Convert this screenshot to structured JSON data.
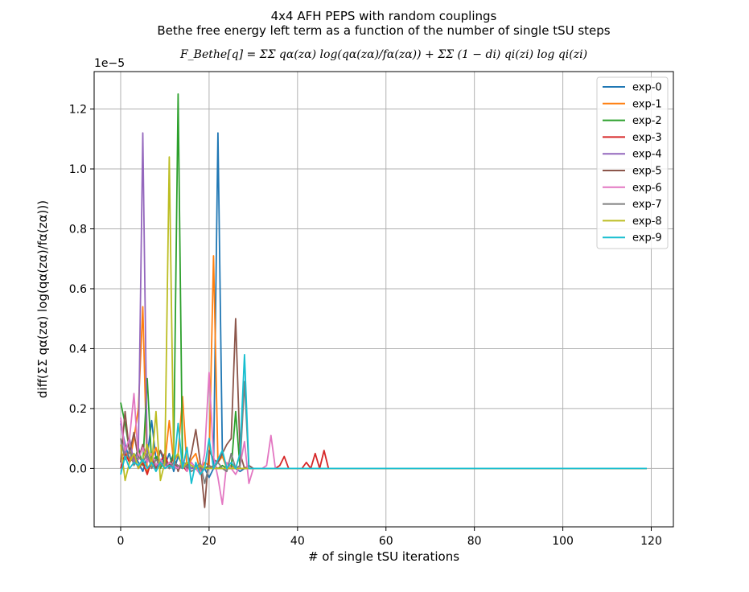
{
  "chart_data": {
    "type": "line",
    "title_lines": [
      "4x4 AFH PEPS with random couplings",
      "Bethe free energy left term as a function of the number of single tSU steps"
    ],
    "formula_title": "F_Bethe[q] = ΣΣ qα(zα) log(qα(zα)/fα(zα)) + ΣΣ (1 − di) qi(zi) log qi(zi)",
    "xlabel": "# of single tSU iterations",
    "ylabel": "diff(ΣΣ qα(zα) log(qα(zα)/fα(zα)))",
    "y_offset_label": "1e−5",
    "xlim": [
      -6,
      125
    ],
    "ylim": [
      -0.195,
      1.325
    ],
    "x_ticks": [
      "0",
      "20",
      "40",
      "60",
      "80",
      "100",
      "120"
    ],
    "y_ticks": [
      "0.0",
      "0.2",
      "0.4",
      "0.6",
      "0.8",
      "1.0",
      "1.2"
    ],
    "grid": true,
    "legend_position": "top-right",
    "series": [
      {
        "name": "exp-0",
        "color": "#1f77b4",
        "points": [
          [
            0,
            0.15
          ],
          [
            1,
            0.08
          ],
          [
            2,
            0.03
          ],
          [
            3,
            0.05
          ],
          [
            4,
            0.02
          ],
          [
            5,
            -0.01
          ],
          [
            6,
            0.04
          ],
          [
            7,
            0.16
          ],
          [
            8,
            0.03
          ],
          [
            9,
            0.06
          ],
          [
            10,
            0.01
          ],
          [
            11,
            0.05
          ],
          [
            12,
            -0.01
          ],
          [
            13,
            0.04
          ],
          [
            14,
            0.01
          ],
          [
            15,
            0.02
          ],
          [
            16,
            0.0
          ],
          [
            17,
            0.01
          ],
          [
            18,
            -0.01
          ],
          [
            19,
            0.0
          ],
          [
            20,
            -0.03
          ],
          [
            21,
            0.0
          ],
          [
            22,
            1.12
          ],
          [
            23,
            0.05
          ],
          [
            24,
            0.0
          ],
          [
            25,
            0.01
          ],
          [
            26,
            0.0
          ],
          [
            27,
            -0.01
          ],
          [
            28,
            0.0
          ],
          [
            29,
            0.0
          ],
          [
            30,
            0.0
          ],
          [
            119,
            0.0
          ]
        ]
      },
      {
        "name": "exp-1",
        "color": "#ff7f0e",
        "points": [
          [
            0,
            0.03
          ],
          [
            1,
            0.06
          ],
          [
            2,
            0.02
          ],
          [
            3,
            0.1
          ],
          [
            4,
            0.2
          ],
          [
            5,
            0.54
          ],
          [
            6,
            -0.02
          ],
          [
            7,
            0.03
          ],
          [
            8,
            0.07
          ],
          [
            9,
            0.01
          ],
          [
            10,
            0.02
          ],
          [
            11,
            0.16
          ],
          [
            12,
            0.02
          ],
          [
            13,
            0.05
          ],
          [
            14,
            0.24
          ],
          [
            15,
            0.0
          ],
          [
            16,
            0.03
          ],
          [
            17,
            0.05
          ],
          [
            18,
            -0.01
          ],
          [
            19,
            0.02
          ],
          [
            20,
            0.01
          ],
          [
            21,
            0.71
          ],
          [
            22,
            0.02
          ],
          [
            23,
            0.04
          ],
          [
            24,
            0.0
          ],
          [
            25,
            0.01
          ],
          [
            26,
            0.0
          ],
          [
            27,
            0.0
          ],
          [
            28,
            0.0
          ],
          [
            29,
            0.0
          ],
          [
            30,
            0.0
          ],
          [
            119,
            0.0
          ]
        ]
      },
      {
        "name": "exp-2",
        "color": "#2ca02c",
        "points": [
          [
            0,
            0.22
          ],
          [
            1,
            0.15
          ],
          [
            2,
            0.06
          ],
          [
            3,
            0.02
          ],
          [
            4,
            0.07
          ],
          [
            5,
            0.01
          ],
          [
            6,
            0.3
          ],
          [
            7,
            0.02
          ],
          [
            8,
            0.04
          ],
          [
            9,
            0.0
          ],
          [
            10,
            0.03
          ],
          [
            11,
            0.01
          ],
          [
            12,
            0.05
          ],
          [
            13,
            1.25
          ],
          [
            14,
            0.0
          ],
          [
            15,
            0.02
          ],
          [
            16,
            0.01
          ],
          [
            17,
            0.0
          ],
          [
            18,
            0.01
          ],
          [
            19,
            0.0
          ],
          [
            20,
            0.01
          ],
          [
            21,
            0.0
          ],
          [
            22,
            0.0
          ],
          [
            23,
            0.01
          ],
          [
            24,
            0.0
          ],
          [
            25,
            0.0
          ],
          [
            26,
            0.19
          ],
          [
            27,
            0.0
          ],
          [
            28,
            0.0
          ],
          [
            29,
            0.0
          ],
          [
            30,
            0.0
          ],
          [
            119,
            0.0
          ]
        ]
      },
      {
        "name": "exp-3",
        "color": "#d62728",
        "points": [
          [
            0,
            0.0
          ],
          [
            1,
            0.05
          ],
          [
            2,
            0.02
          ],
          [
            3,
            0.04
          ],
          [
            4,
            0.0
          ],
          [
            5,
            0.02
          ],
          [
            6,
            -0.02
          ],
          [
            7,
            0.03
          ],
          [
            8,
            0.0
          ],
          [
            9,
            0.02
          ],
          [
            10,
            0.05
          ],
          [
            11,
            0.0
          ],
          [
            12,
            0.02
          ],
          [
            13,
            0.0
          ],
          [
            14,
            0.01
          ],
          [
            15,
            -0.01
          ],
          [
            16,
            0.02
          ],
          [
            17,
            0.0
          ],
          [
            18,
            0.01
          ],
          [
            19,
            0.0
          ],
          [
            20,
            0.0
          ],
          [
            21,
            0.01
          ],
          [
            22,
            0.0
          ],
          [
            30,
            0.0
          ],
          [
            35,
            0.0
          ],
          [
            36,
            0.01
          ],
          [
            37,
            0.04
          ],
          [
            38,
            0.0
          ],
          [
            40,
            0.0
          ],
          [
            41,
            0.0
          ],
          [
            42,
            0.02
          ],
          [
            43,
            0.0
          ],
          [
            44,
            0.05
          ],
          [
            45,
            0.0
          ],
          [
            46,
            0.06
          ],
          [
            47,
            0.0
          ],
          [
            119,
            0.0
          ]
        ]
      },
      {
        "name": "exp-4",
        "color": "#9467bd",
        "points": [
          [
            0,
            0.16
          ],
          [
            1,
            0.05
          ],
          [
            2,
            0.1
          ],
          [
            3,
            0.02
          ],
          [
            4,
            0.06
          ],
          [
            5,
            1.12
          ],
          [
            6,
            0.02
          ],
          [
            7,
            0.05
          ],
          [
            8,
            0.0
          ],
          [
            9,
            0.03
          ],
          [
            10,
            0.01
          ],
          [
            11,
            0.02
          ],
          [
            12,
            0.0
          ],
          [
            13,
            0.01
          ],
          [
            14,
            0.0
          ],
          [
            15,
            0.01
          ],
          [
            16,
            0.0
          ],
          [
            17,
            0.0
          ],
          [
            18,
            0.0
          ],
          [
            19,
            0.0
          ],
          [
            20,
            0.0
          ],
          [
            30,
            0.0
          ],
          [
            119,
            0.0
          ]
        ]
      },
      {
        "name": "exp-5",
        "color": "#8c564b",
        "points": [
          [
            0,
            0.02
          ],
          [
            1,
            0.19
          ],
          [
            2,
            0.05
          ],
          [
            3,
            0.12
          ],
          [
            4,
            0.03
          ],
          [
            5,
            0.08
          ],
          [
            6,
            0.02
          ],
          [
            7,
            0.05
          ],
          [
            8,
            0.0
          ],
          [
            9,
            0.06
          ],
          [
            10,
            0.03
          ],
          [
            11,
            0.0
          ],
          [
            12,
            0.04
          ],
          [
            13,
            -0.01
          ],
          [
            14,
            0.03
          ],
          [
            15,
            0.0
          ],
          [
            16,
            0.05
          ],
          [
            17,
            0.13
          ],
          [
            18,
            0.02
          ],
          [
            19,
            -0.13
          ],
          [
            20,
            0.06
          ],
          [
            21,
            0.03
          ],
          [
            22,
            0.02
          ],
          [
            23,
            0.05
          ],
          [
            24,
            0.08
          ],
          [
            25,
            0.1
          ],
          [
            26,
            0.5
          ],
          [
            27,
            0.05
          ],
          [
            28,
            0.0
          ],
          [
            29,
            0.01
          ],
          [
            30,
            0.0
          ],
          [
            119,
            0.0
          ]
        ]
      },
      {
        "name": "exp-6",
        "color": "#e377c2",
        "points": [
          [
            0,
            0.17
          ],
          [
            1,
            0.06
          ],
          [
            2,
            0.1
          ],
          [
            3,
            0.25
          ],
          [
            4,
            0.03
          ],
          [
            5,
            0.07
          ],
          [
            6,
            0.02
          ],
          [
            7,
            0.05
          ],
          [
            8,
            0.01
          ],
          [
            9,
            0.03
          ],
          [
            10,
            0.0
          ],
          [
            11,
            0.02
          ],
          [
            12,
            0.01
          ],
          [
            13,
            0.0
          ],
          [
            14,
            0.03
          ],
          [
            15,
            -0.01
          ],
          [
            16,
            0.02
          ],
          [
            17,
            0.0
          ],
          [
            18,
            -0.02
          ],
          [
            19,
            0.05
          ],
          [
            20,
            0.32
          ],
          [
            21,
            0.04
          ],
          [
            22,
            -0.03
          ],
          [
            23,
            -0.12
          ],
          [
            24,
            0.02
          ],
          [
            25,
            0.0
          ],
          [
            26,
            -0.02
          ],
          [
            27,
            0.01
          ],
          [
            28,
            0.09
          ],
          [
            29,
            -0.05
          ],
          [
            30,
            0.0
          ],
          [
            31,
            0.0
          ],
          [
            32,
            0.0
          ],
          [
            33,
            0.01
          ],
          [
            34,
            0.11
          ],
          [
            35,
            0.0
          ],
          [
            119,
            0.0
          ]
        ]
      },
      {
        "name": "exp-7",
        "color": "#7f7f7f",
        "points": [
          [
            0,
            0.1
          ],
          [
            1,
            0.03
          ],
          [
            2,
            0.06
          ],
          [
            3,
            0.01
          ],
          [
            4,
            0.04
          ],
          [
            5,
            0.02
          ],
          [
            6,
            0.05
          ],
          [
            7,
            0.0
          ],
          [
            8,
            0.03
          ],
          [
            9,
            0.01
          ],
          [
            10,
            0.02
          ],
          [
            11,
            0.0
          ],
          [
            12,
            0.02
          ],
          [
            13,
            0.01
          ],
          [
            14,
            0.0
          ],
          [
            15,
            0.01
          ],
          [
            16,
            -0.01
          ],
          [
            17,
            0.0
          ],
          [
            18,
            0.02
          ],
          [
            19,
            -0.05
          ],
          [
            20,
            0.01
          ],
          [
            21,
            0.0
          ],
          [
            22,
            0.02
          ],
          [
            23,
            0.0
          ],
          [
            24,
            -0.01
          ],
          [
            25,
            0.05
          ],
          [
            26,
            0.0
          ],
          [
            27,
            0.01
          ],
          [
            28,
            0.29
          ],
          [
            29,
            0.0
          ],
          [
            30,
            0.0
          ],
          [
            119,
            0.0
          ]
        ]
      },
      {
        "name": "exp-8",
        "color": "#bcbd22",
        "points": [
          [
            0,
            0.08
          ],
          [
            1,
            -0.04
          ],
          [
            2,
            0.02
          ],
          [
            3,
            0.05
          ],
          [
            4,
            0.0
          ],
          [
            5,
            0.03
          ],
          [
            6,
            0.08
          ],
          [
            7,
            0.01
          ],
          [
            8,
            0.19
          ],
          [
            9,
            -0.04
          ],
          [
            10,
            0.02
          ],
          [
            11,
            1.04
          ],
          [
            12,
            0.03
          ],
          [
            13,
            0.05
          ],
          [
            14,
            0.0
          ],
          [
            15,
            0.02
          ],
          [
            16,
            0.01
          ],
          [
            17,
            0.0
          ],
          [
            18,
            0.01
          ],
          [
            19,
            0.0
          ],
          [
            20,
            0.0
          ],
          [
            30,
            0.0
          ],
          [
            119,
            0.0
          ]
        ]
      },
      {
        "name": "exp-9",
        "color": "#17becf",
        "points": [
          [
            0,
            -0.02
          ],
          [
            1,
            0.04
          ],
          [
            2,
            0.0
          ],
          [
            3,
            0.02
          ],
          [
            4,
            0.01
          ],
          [
            5,
            0.03
          ],
          [
            6,
            0.0
          ],
          [
            7,
            0.02
          ],
          [
            8,
            -0.01
          ],
          [
            9,
            0.02
          ],
          [
            10,
            0.0
          ],
          [
            11,
            0.01
          ],
          [
            12,
            0.0
          ],
          [
            13,
            0.15
          ],
          [
            14,
            0.0
          ],
          [
            15,
            0.07
          ],
          [
            16,
            -0.05
          ],
          [
            17,
            0.02
          ],
          [
            18,
            -0.02
          ],
          [
            19,
            0.0
          ],
          [
            20,
            0.1
          ],
          [
            21,
            0.0
          ],
          [
            22,
            0.03
          ],
          [
            23,
            0.06
          ],
          [
            24,
            0.0
          ],
          [
            25,
            0.02
          ],
          [
            26,
            0.0
          ],
          [
            27,
            0.05
          ],
          [
            28,
            0.38
          ],
          [
            29,
            0.0
          ],
          [
            30,
            0.0
          ],
          [
            119,
            0.0
          ]
        ]
      }
    ]
  }
}
